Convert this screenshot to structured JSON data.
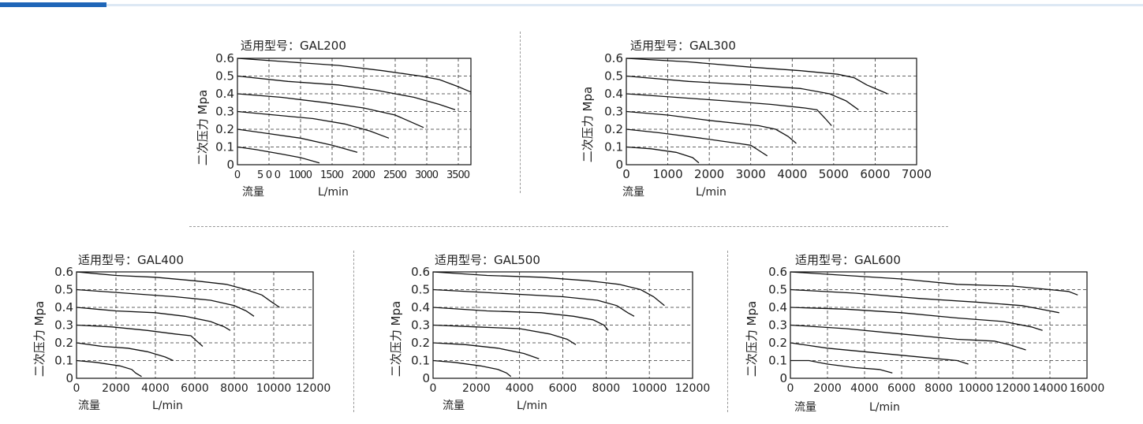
{
  "charts": [
    {
      "title": "适用型号：GAL200",
      "ylabel": "二次压力 Mpa",
      "xlabel_cn": "流量",
      "xunit": "L/min",
      "xticks": [
        0,
        500,
        1000,
        1500,
        2000,
        2500,
        3000,
        3500
      ],
      "xlim": [
        0,
        3700
      ],
      "yticks": [
        "0",
        "0.1",
        "0.2",
        "0.3",
        "0.4",
        "0.5",
        "0.6"
      ],
      "series": [
        {
          "points": [
            [
              0,
              0.1
            ],
            [
              300,
              0.085
            ],
            [
              700,
              0.06
            ],
            [
              1000,
              0.04
            ],
            [
              1300,
              0.01
            ]
          ]
        },
        {
          "points": [
            [
              0,
              0.2
            ],
            [
              400,
              0.18
            ],
            [
              1000,
              0.15
            ],
            [
              1500,
              0.11
            ],
            [
              1900,
              0.07
            ]
          ]
        },
        {
          "points": [
            [
              0,
              0.3
            ],
            [
              600,
              0.28
            ],
            [
              1200,
              0.26
            ],
            [
              1700,
              0.23
            ],
            [
              2100,
              0.19
            ],
            [
              2400,
              0.15
            ]
          ]
        },
        {
          "points": [
            [
              0,
              0.4
            ],
            [
              700,
              0.38
            ],
            [
              1400,
              0.35
            ],
            [
              2000,
              0.32
            ],
            [
              2500,
              0.28
            ],
            [
              2950,
              0.21
            ]
          ]
        },
        {
          "points": [
            [
              0,
              0.5
            ],
            [
              800,
              0.47
            ],
            [
              1600,
              0.45
            ],
            [
              2200,
              0.42
            ],
            [
              2800,
              0.38
            ],
            [
              3200,
              0.34
            ],
            [
              3450,
              0.31
            ]
          ]
        },
        {
          "points": [
            [
              0,
              0.6
            ],
            [
              800,
              0.58
            ],
            [
              1600,
              0.56
            ],
            [
              2300,
              0.53
            ],
            [
              2900,
              0.5
            ],
            [
              3200,
              0.48
            ],
            [
              3500,
              0.44
            ],
            [
              3700,
              0.41
            ]
          ]
        }
      ]
    },
    {
      "title": "适用型号：GAL300",
      "ylabel": "二次压力 Mpa",
      "xlabel_cn": "流量",
      "xunit": "L/min",
      "xticks": [
        0,
        1000,
        2000,
        3000,
        4000,
        5000,
        6000,
        7000
      ],
      "xlim": [
        0,
        7000
      ],
      "yticks": [
        "0",
        "0.1",
        "0.2",
        "0.3",
        "0.4",
        "0.5",
        "0.6"
      ],
      "series": [
        {
          "points": [
            [
              0,
              0.1
            ],
            [
              600,
              0.09
            ],
            [
              1200,
              0.07
            ],
            [
              1600,
              0.04
            ],
            [
              1750,
              0.01
            ]
          ]
        },
        {
          "points": [
            [
              0,
              0.2
            ],
            [
              800,
              0.18
            ],
            [
              1800,
              0.15
            ],
            [
              2700,
              0.12
            ],
            [
              3000,
              0.11
            ],
            [
              3200,
              0.08
            ],
            [
              3400,
              0.05
            ]
          ]
        },
        {
          "points": [
            [
              0,
              0.3
            ],
            [
              1000,
              0.28
            ],
            [
              2000,
              0.25
            ],
            [
              3200,
              0.22
            ],
            [
              3600,
              0.2
            ],
            [
              3900,
              0.16
            ],
            [
              4100,
              0.12
            ]
          ]
        },
        {
          "points": [
            [
              0,
              0.4
            ],
            [
              1200,
              0.38
            ],
            [
              2400,
              0.36
            ],
            [
              3500,
              0.34
            ],
            [
              4300,
              0.32
            ],
            [
              4600,
              0.31
            ],
            [
              4800,
              0.26
            ],
            [
              4950,
              0.22
            ]
          ]
        },
        {
          "points": [
            [
              0,
              0.5
            ],
            [
              1500,
              0.47
            ],
            [
              3000,
              0.45
            ],
            [
              4200,
              0.43
            ],
            [
              4900,
              0.4
            ],
            [
              5300,
              0.36
            ],
            [
              5600,
              0.31
            ]
          ]
        },
        {
          "points": [
            [
              0,
              0.6
            ],
            [
              1500,
              0.58
            ],
            [
              3000,
              0.55
            ],
            [
              4200,
              0.53
            ],
            [
              5100,
              0.51
            ],
            [
              5500,
              0.49
            ],
            [
              5800,
              0.45
            ],
            [
              6100,
              0.42
            ],
            [
              6300,
              0.4
            ]
          ]
        }
      ]
    },
    {
      "title": "适用型号：GAL400",
      "ylabel": "二次压力 Mpa",
      "xlabel_cn": "流量",
      "xunit": "L/min",
      "xticks": [
        0,
        2000,
        4000,
        6000,
        8000,
        10000,
        12000
      ],
      "xlim": [
        0,
        12000
      ],
      "yticks": [
        "0",
        "0.1",
        "0.2",
        "0.3",
        "0.4",
        "0.5",
        "0.6"
      ],
      "series": [
        {
          "points": [
            [
              0,
              0.1
            ],
            [
              1000,
              0.09
            ],
            [
              2200,
              0.07
            ],
            [
              2800,
              0.05
            ],
            [
              3000,
              0.03
            ],
            [
              3300,
              0.01
            ]
          ]
        },
        {
          "points": [
            [
              0,
              0.2
            ],
            [
              1300,
              0.18
            ],
            [
              2600,
              0.17
            ],
            [
              3600,
              0.15
            ],
            [
              4500,
              0.12
            ],
            [
              4900,
              0.1
            ]
          ]
        },
        {
          "points": [
            [
              0,
              0.3
            ],
            [
              1800,
              0.29
            ],
            [
              3600,
              0.27
            ],
            [
              5000,
              0.25
            ],
            [
              5800,
              0.24
            ],
            [
              6100,
              0.21
            ],
            [
              6400,
              0.18
            ]
          ]
        },
        {
          "points": [
            [
              0,
              0.4
            ],
            [
              2000,
              0.38
            ],
            [
              4000,
              0.37
            ],
            [
              5500,
              0.35
            ],
            [
              6800,
              0.32
            ],
            [
              7500,
              0.29
            ],
            [
              7800,
              0.27
            ]
          ]
        },
        {
          "points": [
            [
              0,
              0.5
            ],
            [
              2500,
              0.48
            ],
            [
              5000,
              0.46
            ],
            [
              6800,
              0.44
            ],
            [
              8000,
              0.41
            ],
            [
              8600,
              0.38
            ],
            [
              9000,
              0.35
            ]
          ]
        },
        {
          "points": [
            [
              0,
              0.6
            ],
            [
              2000,
              0.58
            ],
            [
              4000,
              0.57
            ],
            [
              6000,
              0.55
            ],
            [
              7600,
              0.53
            ],
            [
              8600,
              0.5
            ],
            [
              9400,
              0.47
            ],
            [
              9900,
              0.43
            ],
            [
              10300,
              0.4
            ]
          ]
        }
      ]
    },
    {
      "title": "适用型号：GAL500",
      "ylabel": "二次压力 Mpa",
      "xlabel_cn": "流量",
      "xunit": "L/min",
      "xticks": [
        0,
        2000,
        4000,
        6000,
        8000,
        10000,
        12000
      ],
      "xlim": [
        0,
        12000
      ],
      "yticks": [
        "0",
        "0.1",
        "0.2",
        "0.3",
        "0.4",
        "0.5",
        "0.6"
      ],
      "series": [
        {
          "points": [
            [
              0,
              0.1
            ],
            [
              1000,
              0.09
            ],
            [
              2200,
              0.07
            ],
            [
              3000,
              0.05
            ],
            [
              3400,
              0.03
            ],
            [
              3600,
              0.01
            ]
          ]
        },
        {
          "points": [
            [
              0,
              0.2
            ],
            [
              1500,
              0.19
            ],
            [
              3000,
              0.17
            ],
            [
              4200,
              0.14
            ],
            [
              4900,
              0.11
            ]
          ]
        },
        {
          "points": [
            [
              0,
              0.3
            ],
            [
              2000,
              0.29
            ],
            [
              4000,
              0.28
            ],
            [
              5400,
              0.25
            ],
            [
              6200,
              0.22
            ],
            [
              6600,
              0.19
            ]
          ]
        },
        {
          "points": [
            [
              0,
              0.4
            ],
            [
              2500,
              0.38
            ],
            [
              5000,
              0.37
            ],
            [
              6500,
              0.35
            ],
            [
              7400,
              0.33
            ],
            [
              7900,
              0.3
            ],
            [
              8100,
              0.27
            ]
          ]
        },
        {
          "points": [
            [
              0,
              0.5
            ],
            [
              3000,
              0.48
            ],
            [
              6000,
              0.46
            ],
            [
              7600,
              0.44
            ],
            [
              8500,
              0.41
            ],
            [
              9000,
              0.37
            ],
            [
              9300,
              0.35
            ]
          ]
        },
        {
          "points": [
            [
              0,
              0.6
            ],
            [
              2500,
              0.58
            ],
            [
              5000,
              0.57
            ],
            [
              7200,
              0.55
            ],
            [
              8600,
              0.53
            ],
            [
              9600,
              0.5
            ],
            [
              10200,
              0.46
            ],
            [
              10700,
              0.41
            ]
          ]
        }
      ]
    },
    {
      "title": "适用型号：GAL600",
      "ylabel": "二次压力 Mpa",
      "xlabel_cn": "流量",
      "xunit": "L/min",
      "xticks": [
        0,
        2000,
        4000,
        6000,
        8000,
        10000,
        12000,
        14000,
        16000
      ],
      "xlim": [
        0,
        16000
      ],
      "yticks": [
        "0",
        "0.1",
        "0.2",
        "0.3",
        "0.4",
        "0.5",
        "0.6"
      ],
      "series": [
        {
          "points": [
            [
              0,
              0.1
            ],
            [
              1000,
              0.1
            ],
            [
              2000,
              0.08
            ],
            [
              3500,
              0.06
            ],
            [
              4800,
              0.05
            ],
            [
              5500,
              0.03
            ]
          ]
        },
        {
          "points": [
            [
              0,
              0.2
            ],
            [
              2000,
              0.17
            ],
            [
              4000,
              0.15
            ],
            [
              6000,
              0.13
            ],
            [
              8000,
              0.11
            ],
            [
              9000,
              0.1
            ],
            [
              9600,
              0.08
            ]
          ]
        },
        {
          "points": [
            [
              0,
              0.3
            ],
            [
              3000,
              0.28
            ],
            [
              6000,
              0.25
            ],
            [
              9000,
              0.22
            ],
            [
              11000,
              0.21
            ],
            [
              11800,
              0.19
            ],
            [
              12700,
              0.16
            ]
          ]
        },
        {
          "points": [
            [
              0,
              0.4
            ],
            [
              3000,
              0.39
            ],
            [
              6000,
              0.37
            ],
            [
              9000,
              0.34
            ],
            [
              11500,
              0.32
            ],
            [
              13000,
              0.29
            ],
            [
              13600,
              0.27
            ]
          ]
        },
        {
          "points": [
            [
              0,
              0.5
            ],
            [
              3500,
              0.48
            ],
            [
              7000,
              0.45
            ],
            [
              10000,
              0.43
            ],
            [
              12500,
              0.41
            ],
            [
              14000,
              0.38
            ],
            [
              14500,
              0.37
            ]
          ]
        },
        {
          "points": [
            [
              0,
              0.6
            ],
            [
              3000,
              0.58
            ],
            [
              6000,
              0.56
            ],
            [
              9000,
              0.53
            ],
            [
              12000,
              0.52
            ],
            [
              14000,
              0.5
            ],
            [
              15000,
              0.49
            ],
            [
              15500,
              0.47
            ]
          ]
        }
      ]
    }
  ]
}
